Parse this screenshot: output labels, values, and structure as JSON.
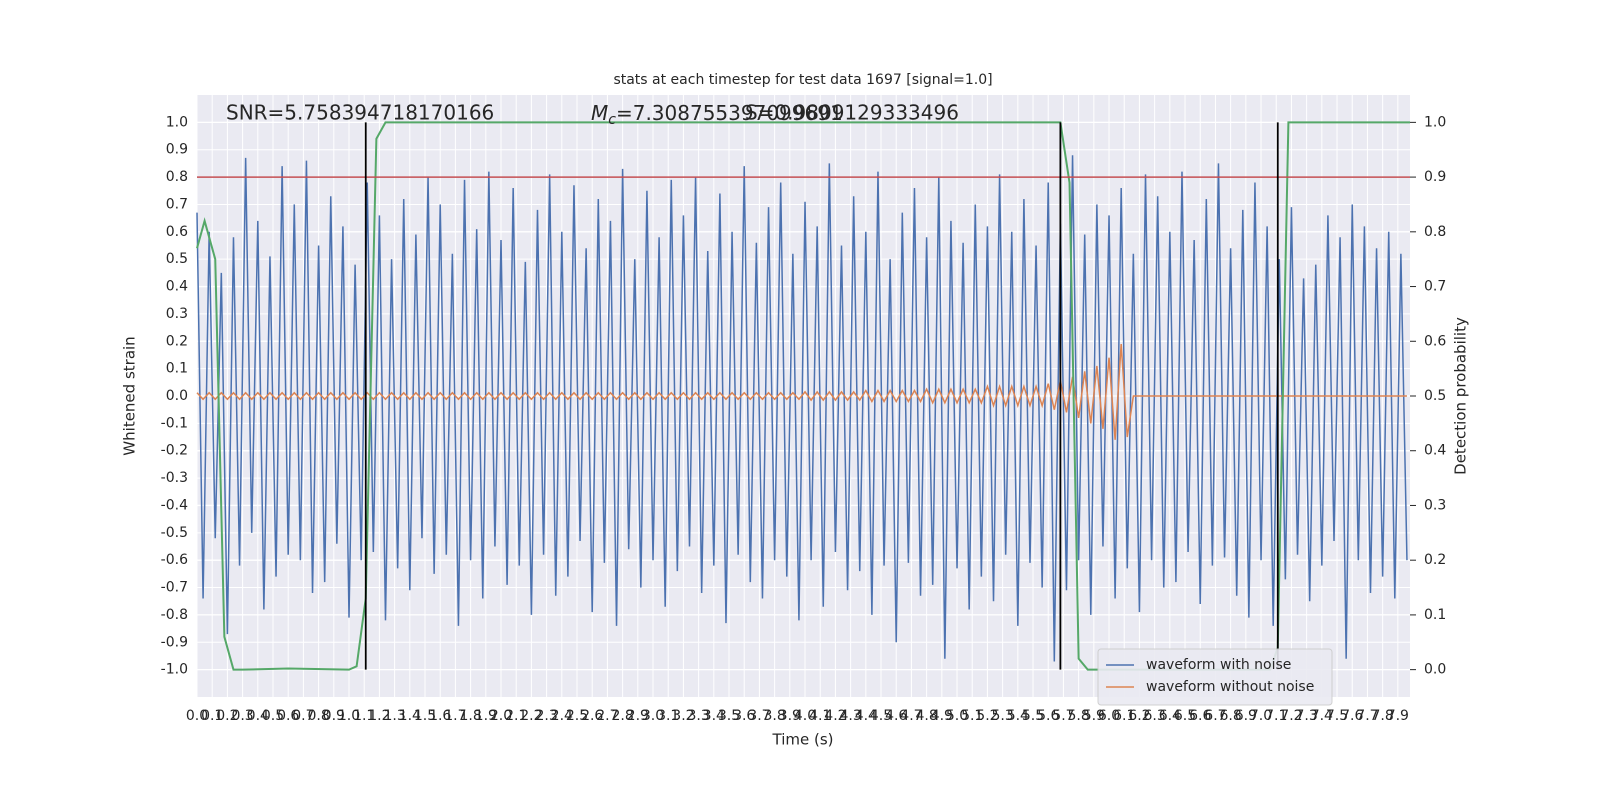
{
  "chart_data": {
    "type": "line",
    "title": "stats at each timestep for test data 1697 [signal=1.0]",
    "xlabel": "Time (s)",
    "ylabel": "Whitened strain",
    "y2label": "Detection probability",
    "annotations": [
      {
        "text": "SNR=5.758394718170166"
      },
      {
        "symbol": "M",
        "subscript": "c",
        "text": "=7.308755397099691"
      },
      {
        "text": "S=0.9809129333496"
      }
    ],
    "xlim": [
      0,
      7.98
    ],
    "ylim": [
      -1.1,
      1.1
    ],
    "y2lim": [
      -0.05,
      1.05
    ],
    "grid": true,
    "legend": "lower right",
    "xticks": [
      {
        "value": 0,
        "label": "0.0"
      },
      0.1,
      0.2,
      0.3,
      0.4,
      0.5,
      0.6,
      0.7,
      0.8,
      0.9,
      {
        "value": 1,
        "label": "1.0"
      },
      1.1,
      1.2,
      1.3,
      1.4,
      1.5,
      1.6,
      1.7,
      1.8,
      1.9,
      {
        "value": 2,
        "label": "2.0"
      },
      2.1,
      2.2,
      2.3,
      2.4,
      2.5,
      2.6,
      2.7,
      2.8,
      2.9,
      {
        "value": 3,
        "label": "3.0"
      },
      3.1,
      3.2,
      3.3,
      3.4,
      3.5,
      3.6,
      3.7,
      3.8,
      3.9,
      {
        "value": 4,
        "label": "4.0"
      },
      4.1,
      4.2,
      4.3,
      4.4,
      4.5,
      4.6,
      4.7,
      4.8,
      4.9,
      {
        "value": 5,
        "label": "5.0"
      },
      5.1,
      5.2,
      5.3,
      5.4,
      5.5,
      5.6,
      5.7,
      5.8,
      5.9,
      {
        "value": 6,
        "label": "6.0"
      },
      6.1,
      6.2,
      6.3,
      6.4,
      6.5,
      6.6,
      6.7,
      6.8,
      6.9,
      {
        "value": 7,
        "label": "7.0"
      },
      7.1,
      7.2,
      7.3,
      7.4,
      7.5,
      7.6,
      7.7,
      7.8,
      7.9
    ],
    "yticks": [
      {
        "value": -1,
        "label": "-1.0"
      },
      -0.9,
      -0.8,
      -0.7,
      -0.6,
      -0.5,
      -0.4,
      -0.3,
      -0.2,
      -0.1,
      {
        "value": 0,
        "label": "0.0"
      },
      0.1,
      0.2,
      0.3,
      0.4,
      0.5,
      0.6,
      0.7,
      0.8,
      0.9,
      {
        "value": 1,
        "label": "1.0"
      }
    ],
    "y2ticks": [
      {
        "value": 0,
        "label": "0.0"
      },
      0.1,
      0.2,
      0.3,
      0.4,
      0.5,
      0.6,
      0.7,
      0.8,
      0.9,
      {
        "value": 1,
        "label": "1.0"
      }
    ],
    "x": [
      0,
      0.04,
      0.08,
      0.12,
      0.16,
      0.2,
      0.24,
      0.28,
      0.32,
      0.36,
      0.4,
      0.44,
      0.48,
      0.52,
      0.56,
      0.6,
      0.64,
      0.68,
      0.72,
      0.76,
      0.8,
      0.84,
      0.88,
      0.92,
      0.96,
      1,
      1.04,
      1.08,
      1.12,
      1.16,
      1.2,
      1.24,
      1.28,
      1.32,
      1.36,
      1.4,
      1.44,
      1.48,
      1.52,
      1.56,
      1.6,
      1.64,
      1.68,
      1.72,
      1.76,
      1.8,
      1.84,
      1.88,
      1.92,
      1.96,
      2,
      2.04,
      2.08,
      2.12,
      2.16,
      2.2,
      2.24,
      2.28,
      2.32,
      2.36,
      2.4,
      2.44,
      2.48,
      2.52,
      2.56,
      2.6,
      2.64,
      2.68,
      2.72,
      2.76,
      2.8,
      2.84,
      2.88,
      2.92,
      2.96,
      3,
      3.04,
      3.08,
      3.12,
      3.16,
      3.2,
      3.24,
      3.28,
      3.32,
      3.36,
      3.4,
      3.44,
      3.48,
      3.52,
      3.56,
      3.6,
      3.64,
      3.68,
      3.72,
      3.76,
      3.8,
      3.84,
      3.88,
      3.92,
      3.96,
      4,
      4.04,
      4.08,
      4.12,
      4.16,
      4.2,
      4.24,
      4.28,
      4.32,
      4.36,
      4.4,
      4.44,
      4.48,
      4.52,
      4.56,
      4.6,
      4.64,
      4.68,
      4.72,
      4.76,
      4.8,
      4.84,
      4.88,
      4.92,
      4.96,
      5,
      5.04,
      5.08,
      5.12,
      5.16,
      5.2,
      5.24,
      5.28,
      5.32,
      5.36,
      5.4,
      5.44,
      5.48,
      5.52,
      5.56,
      5.6,
      5.64,
      5.68,
      5.72,
      5.76,
      5.8,
      5.84,
      5.88,
      5.92,
      5.96,
      6,
      6.04,
      6.08,
      6.12,
      6.16,
      6.2,
      6.24,
      6.28,
      6.32,
      6.36,
      6.4,
      6.44,
      6.48,
      6.52,
      6.56,
      6.6,
      6.64,
      6.68,
      6.72,
      6.76,
      6.8,
      6.84,
      6.88,
      6.92,
      6.96,
      7,
      7.04,
      7.08,
      7.12,
      7.16,
      7.2,
      7.24,
      7.28,
      7.32,
      7.36,
      7.4,
      7.44,
      7.48,
      7.52,
      7.56,
      7.6,
      7.64,
      7.68,
      7.72,
      7.76,
      7.8,
      7.84,
      7.88,
      7.92,
      7.96
    ],
    "series": [
      {
        "name": "waveform with noise",
        "color": "#4c72b0",
        "values": [
          0.67,
          -0.74,
          0.6,
          -0.52,
          0.45,
          -0.87,
          0.58,
          -0.62,
          0.87,
          -0.5,
          0.64,
          -0.78,
          0.51,
          -0.66,
          0.84,
          -0.58,
          0.7,
          -0.6,
          0.86,
          -0.72,
          0.55,
          -0.68,
          0.73,
          -0.54,
          0.62,
          -0.81,
          0.48,
          -0.6,
          0.78,
          -0.57,
          0.66,
          -0.82,
          0.5,
          -0.63,
          0.72,
          -0.71,
          0.59,
          -0.52,
          0.8,
          -0.65,
          0.7,
          -0.58,
          0.52,
          -0.84,
          0.79,
          -0.6,
          0.61,
          -0.74,
          0.82,
          -0.55,
          0.57,
          -0.69,
          0.76,
          -0.62,
          0.49,
          -0.8,
          0.68,
          -0.58,
          0.81,
          -0.73,
          0.6,
          -0.66,
          0.77,
          -0.53,
          0.54,
          -0.79,
          0.72,
          -0.61,
          0.64,
          -0.84,
          0.83,
          -0.56,
          0.5,
          -0.7,
          0.75,
          -0.6,
          0.58,
          -0.77,
          0.79,
          -0.64,
          0.66,
          -0.55,
          0.8,
          -0.72,
          0.53,
          -0.62,
          0.74,
          -0.83,
          0.6,
          -0.58,
          0.84,
          -0.68,
          0.56,
          -0.74,
          0.69,
          -0.6,
          0.78,
          -0.66,
          0.52,
          -0.82,
          0.71,
          -0.6,
          0.62,
          -0.77,
          0.85,
          -0.57,
          0.55,
          -0.71,
          0.73,
          -0.64,
          0.6,
          -0.8,
          0.82,
          -0.62,
          0.5,
          -0.9,
          0.67,
          -0.61,
          0.76,
          -0.73,
          0.58,
          -0.69,
          0.8,
          -0.96,
          0.64,
          -0.63,
          0.56,
          -0.78,
          0.7,
          -0.66,
          0.62,
          -0.75,
          0.81,
          -0.58,
          0.6,
          -0.84,
          0.72,
          -0.61,
          0.55,
          -0.7,
          0.78,
          -0.97,
          0.63,
          -0.71,
          0.88,
          -0.6,
          0.59,
          -0.8,
          0.7,
          -0.55,
          0.66,
          -0.74,
          0.76,
          -0.63,
          0.52,
          -0.79,
          0.81,
          -0.6,
          0.73,
          -0.7,
          0.6,
          -0.68,
          0.82,
          -0.57,
          0.57,
          -0.76,
          0.72,
          -0.62,
          0.85,
          -0.59,
          0.54,
          -0.73,
          0.68,
          -0.81,
          0.78,
          -0.6,
          0.62,
          -0.84,
          0.5,
          -0.67,
          0.69,
          -0.58,
          0.43,
          -0.75,
          0.48,
          -0.62,
          0.66,
          -0.53,
          0.58,
          -0.96,
          0.7,
          -0.6,
          0.62,
          -0.72,
          0.54,
          -0.66,
          0.6,
          -0.74,
          0.52,
          -0.6
        ]
      },
      {
        "name": "waveform without noise",
        "color": "#dd8452",
        "values": [
          0.012,
          -0.012,
          0.012,
          -0.012,
          0.012,
          -0.012,
          0.012,
          -0.012,
          0.012,
          -0.012,
          0.012,
          -0.012,
          0.012,
          -0.012,
          0.012,
          -0.012,
          0.012,
          -0.012,
          0.012,
          -0.012,
          0.012,
          -0.012,
          0.012,
          -0.012,
          0.012,
          -0.012,
          0.012,
          -0.012,
          0.012,
          -0.012,
          0.012,
          -0.012,
          0.012,
          -0.012,
          0.012,
          -0.012,
          0.012,
          -0.012,
          0.012,
          -0.012,
          0.012,
          -0.012,
          0.012,
          -0.012,
          0.012,
          -0.012,
          0.012,
          -0.012,
          0.012,
          -0.012,
          0.012,
          -0.012,
          0.012,
          -0.012,
          0.012,
          -0.012,
          0.012,
          -0.012,
          0.012,
          -0.012,
          0.012,
          -0.012,
          0.012,
          -0.012,
          0.012,
          -0.012,
          0.012,
          -0.012,
          0.012,
          -0.012,
          0.012,
          -0.012,
          0.012,
          -0.012,
          0.012,
          -0.012,
          0.012,
          -0.012,
          0.012,
          -0.012,
          0.012,
          -0.012,
          0.012,
          -0.012,
          0.012,
          -0.012,
          0.012,
          -0.012,
          0.012,
          -0.012,
          0.012,
          -0.012,
          0.012,
          -0.012,
          0.012,
          -0.012,
          0.012,
          -0.012,
          0.012,
          -0.012,
          0.015,
          -0.015,
          0.015,
          -0.015,
          0.015,
          -0.015,
          0.015,
          -0.015,
          0.015,
          -0.015,
          0.02,
          -0.02,
          0.02,
          -0.02,
          0.02,
          -0.02,
          0.02,
          -0.02,
          0.02,
          -0.02,
          0.025,
          -0.025,
          0.025,
          -0.025,
          0.025,
          -0.025,
          0.025,
          -0.025,
          0.025,
          -0.025,
          0.035,
          -0.035,
          0.035,
          -0.035,
          0.035,
          -0.035,
          0.035,
          -0.035,
          0.035,
          -0.035,
          0.045,
          -0.05,
          0.055,
          -0.06,
          0.07,
          -0.08,
          0.09,
          -0.1,
          0.11,
          -0.12,
          0.14,
          -0.16,
          0.19,
          -0.15,
          0,
          0,
          0,
          0,
          0,
          0,
          0,
          0,
          0,
          0,
          0,
          0,
          0,
          0,
          0,
          0,
          0,
          0,
          0,
          0,
          0,
          0,
          0,
          0,
          0,
          0,
          0,
          0,
          0,
          0,
          0,
          0,
          0,
          0,
          0,
          0,
          0,
          0,
          0,
          0,
          0,
          0,
          0,
          0,
          0,
          0
        ]
      },
      {
        "color": "#55a868",
        "axis": "y2",
        "x": [
          0,
          0.05,
          0.12,
          0.18,
          0.24,
          0.3,
          0.6,
          1.0,
          1.05,
          1.11,
          1.18,
          1.24,
          5.68,
          5.74,
          5.8,
          5.86,
          5.94,
          6.5,
          7.0,
          7.06,
          7.11,
          7.18,
          7.24,
          7.98
        ],
        "values": [
          0.77,
          0.82,
          0.75,
          0.06,
          0.0,
          0.0,
          0.002,
          0.0,
          0.006,
          0.13,
          0.97,
          1.0,
          1.0,
          0.89,
          0.02,
          0.0,
          0.0,
          0.0,
          0.0,
          0.0,
          0.04,
          1.0,
          1.0,
          1.0
        ]
      }
    ],
    "hlines": [
      {
        "y": 0.8,
        "color": "#c44e52"
      }
    ],
    "vlines": {
      "x": [
        1.11,
        5.68,
        7.11
      ],
      "ymin": -1,
      "ymax": 1,
      "color": "#000000"
    }
  }
}
